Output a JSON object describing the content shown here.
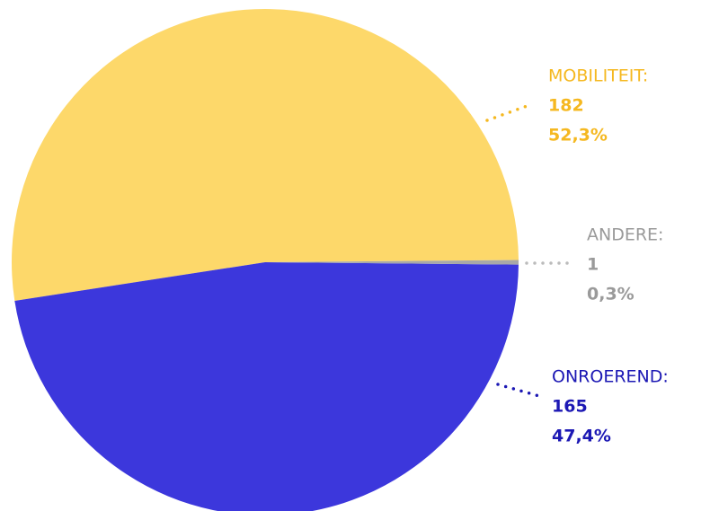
{
  "chart_data": {
    "type": "pie",
    "categories": [
      "MOBILITEIT:",
      "ONROEREND:",
      "ANDERE:"
    ],
    "values": [
      182,
      165,
      1
    ],
    "percentages": [
      {
        "value": 52.3,
        "label": "52,3%"
      },
      {
        "value": 47.4,
        "label": "47,4%"
      },
      {
        "value": 0.3,
        "label": "0,3%"
      }
    ],
    "colors": [
      "#fdd86a",
      "#3c37dc",
      "#a8a8a8"
    ],
    "label_colors": [
      "#f5b820",
      "#1c18b4",
      "#9a9a9a"
    ]
  }
}
